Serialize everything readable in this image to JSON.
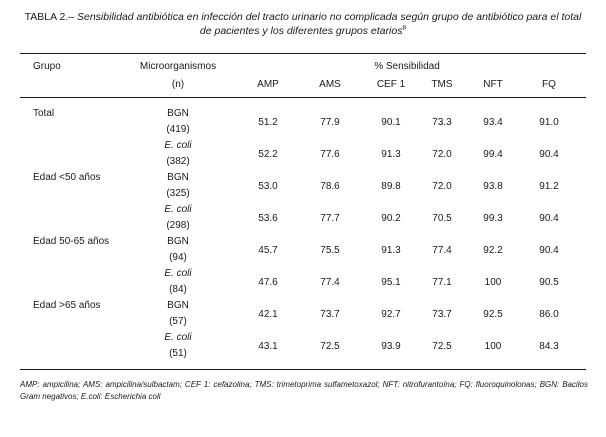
{
  "caption": {
    "label": "TABLA 2.–",
    "text": "Sensibilidad antibiótica en infección del tracto urinario no complicada según grupo de antibiótico para el total de pacientes y los diferentes grupos etarios",
    "ref": "8"
  },
  "table": {
    "headers": {
      "group": "Grupo",
      "micro": "Microorganismos",
      "micro_n": "(n)",
      "sensitivity": "% Sensibilidad",
      "drugs": [
        "AMP",
        "AMS",
        "CEF 1",
        "TMS",
        "NFT",
        "FQ"
      ]
    },
    "groups": [
      {
        "name": "Total",
        "rows": [
          {
            "org": "BGN",
            "n": "(419)",
            "italic": false,
            "values": [
              "51.2",
              "77.9",
              "90.1",
              "73.3",
              "93.4",
              "91.0"
            ]
          },
          {
            "org": "E. coli",
            "n": "(382)",
            "italic": true,
            "values": [
              "52.2",
              "77.6",
              "91.3",
              "72.0",
              "99.4",
              "90.4"
            ]
          }
        ]
      },
      {
        "name": "Edad <50 años",
        "rows": [
          {
            "org": "BGN",
            "n": "(325)",
            "italic": false,
            "values": [
              "53.0",
              "78.6",
              "89.8",
              "72.0",
              "93.8",
              "91.2"
            ]
          },
          {
            "org": "E. coli",
            "n": "(298)",
            "italic": true,
            "values": [
              "53.6",
              "77.7",
              "90.2",
              "70.5",
              "99.3",
              "90.4"
            ]
          }
        ]
      },
      {
        "name": "Edad 50-65 años",
        "rows": [
          {
            "org": "BGN",
            "n": "(94)",
            "italic": false,
            "values": [
              "45.7",
              "75.5",
              "91.3",
              "77.4",
              "92.2",
              "90.4"
            ]
          },
          {
            "org": "E. coli",
            "n": "(84)",
            "italic": true,
            "values": [
              "47.6",
              "77.4",
              "95.1",
              "77.1",
              "100",
              "90.5"
            ]
          }
        ]
      },
      {
        "name": "Edad >65 años",
        "rows": [
          {
            "org": "BGN",
            "n": "(57)",
            "italic": false,
            "values": [
              "42.1",
              "73.7",
              "92.7",
              "73.7",
              "92.5",
              "86.0"
            ]
          },
          {
            "org": "E. coli",
            "n": "(51)",
            "italic": true,
            "values": [
              "43.1",
              "72.5",
              "93.9",
              "72.5",
              "100",
              "84.3"
            ]
          }
        ]
      }
    ]
  },
  "footnote": "AMP: ampicilina; AMS: ampicilina/sulbactam; CEF 1: cefazolina; TMS: trimetoprima sulfametoxazol; NFT: nitrofurantoína; FQ: fluoroquinolonas; BGN: Bacilos Gram negativos; E.coli: Escherichia coli"
}
